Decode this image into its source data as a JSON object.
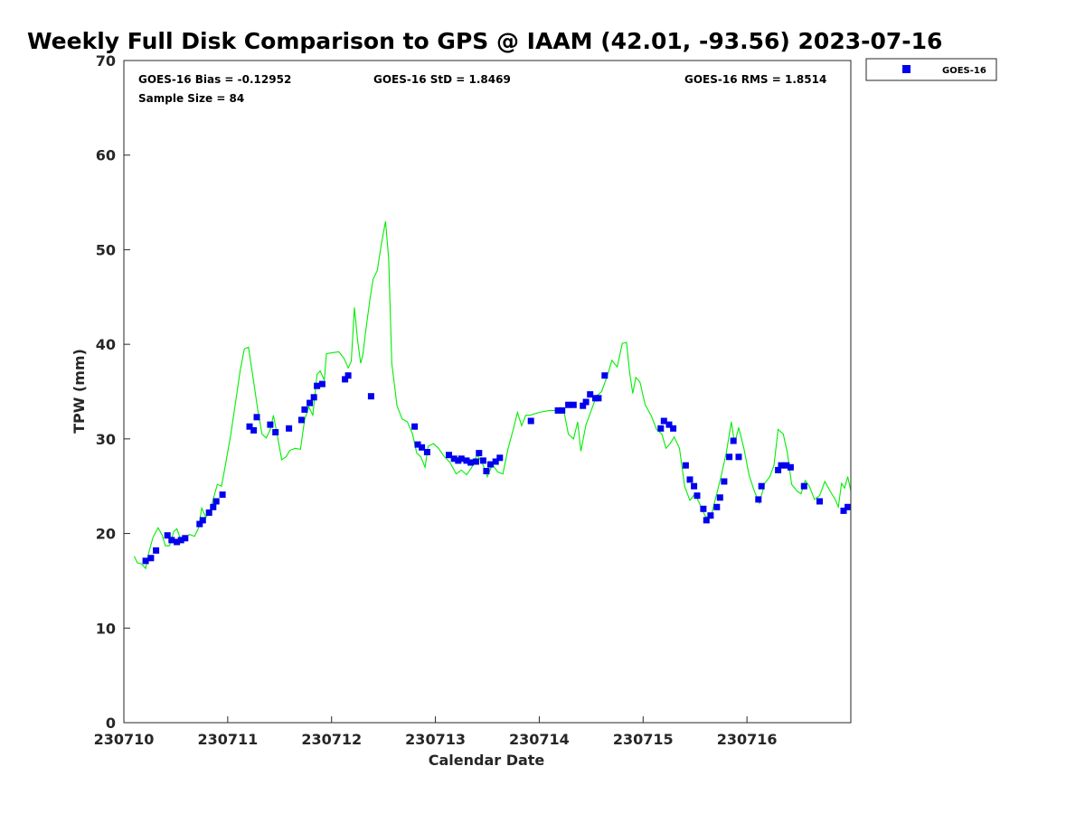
{
  "chart_data": {
    "type": "scatter",
    "title": "Weekly Full Disk Comparison to GPS @ IAAM (42.01, -93.56) 2023-07-16",
    "xlabel": "Calendar Date",
    "ylabel": "TPW (mm)",
    "xlim": [
      230710,
      230717
    ],
    "ylim": [
      0,
      70
    ],
    "x_ticks": [
      "230710",
      "230711",
      "230712",
      "230713",
      "230714",
      "230715",
      "230716"
    ],
    "y_ticks": [
      "0",
      "10",
      "20",
      "30",
      "40",
      "50",
      "60",
      "70"
    ],
    "legend_position": "top-right-outside",
    "stats": {
      "bias": "GOES-16 Bias = -0.12952",
      "std": "GOES-16 StD = 1.8469",
      "rms": "GOES-16 RMS = 1.8514",
      "sample": "Sample Size = 84"
    },
    "colors": {
      "goes": "#0000ee",
      "gps": "#00ee00"
    },
    "series": [
      {
        "name": "GOES-16",
        "kind": "scatter",
        "points": [
          [
            230710.21,
            17.1
          ],
          [
            230710.26,
            17.4
          ],
          [
            230710.31,
            18.2
          ],
          [
            230710.42,
            19.8
          ],
          [
            230710.46,
            19.3
          ],
          [
            230710.51,
            19.1
          ],
          [
            230710.55,
            19.3
          ],
          [
            230710.59,
            19.5
          ],
          [
            230710.73,
            21.0
          ],
          [
            230710.76,
            21.4
          ],
          [
            230710.82,
            22.2
          ],
          [
            230710.86,
            22.8
          ],
          [
            230710.89,
            23.4
          ],
          [
            230710.95,
            24.1
          ],
          [
            230711.21,
            31.3
          ],
          [
            230711.25,
            30.9
          ],
          [
            230711.28,
            32.3
          ],
          [
            230711.41,
            31.5
          ],
          [
            230711.46,
            30.7
          ],
          [
            230711.59,
            31.1
          ],
          [
            230711.71,
            32.0
          ],
          [
            230711.74,
            33.1
          ],
          [
            230711.79,
            33.8
          ],
          [
            230711.83,
            34.4
          ],
          [
            230711.86,
            35.6
          ],
          [
            230711.91,
            35.8
          ],
          [
            230712.13,
            36.3
          ],
          [
            230712.16,
            36.7
          ],
          [
            230712.38,
            34.5
          ],
          [
            230712.8,
            31.3
          ],
          [
            230712.83,
            29.4
          ],
          [
            230712.87,
            29.1
          ],
          [
            230712.92,
            28.6
          ],
          [
            230713.13,
            28.3
          ],
          [
            230713.18,
            27.9
          ],
          [
            230713.22,
            27.7
          ],
          [
            230713.25,
            27.9
          ],
          [
            230713.3,
            27.7
          ],
          [
            230713.34,
            27.5
          ],
          [
            230713.39,
            27.6
          ],
          [
            230713.42,
            28.5
          ],
          [
            230713.46,
            27.7
          ],
          [
            230713.49,
            26.6
          ],
          [
            230713.53,
            27.3
          ],
          [
            230713.58,
            27.6
          ],
          [
            230713.62,
            28.0
          ],
          [
            230713.92,
            31.9
          ],
          [
            230714.18,
            33.0
          ],
          [
            230714.22,
            33.0
          ],
          [
            230714.28,
            33.6
          ],
          [
            230714.33,
            33.6
          ],
          [
            230714.42,
            33.5
          ],
          [
            230714.45,
            33.9
          ],
          [
            230714.49,
            34.7
          ],
          [
            230714.54,
            34.3
          ],
          [
            230714.57,
            34.3
          ],
          [
            230714.63,
            36.7
          ],
          [
            230715.17,
            31.1
          ],
          [
            230715.2,
            31.9
          ],
          [
            230715.25,
            31.5
          ],
          [
            230715.29,
            31.1
          ],
          [
            230715.41,
            27.2
          ],
          [
            230715.45,
            25.7
          ],
          [
            230715.49,
            25.0
          ],
          [
            230715.52,
            24.0
          ],
          [
            230715.58,
            22.6
          ],
          [
            230715.61,
            21.4
          ],
          [
            230715.65,
            21.9
          ],
          [
            230715.71,
            22.8
          ],
          [
            230715.74,
            23.8
          ],
          [
            230715.78,
            25.5
          ],
          [
            230715.83,
            28.1
          ],
          [
            230715.87,
            29.8
          ],
          [
            230715.92,
            28.1
          ],
          [
            230716.11,
            23.6
          ],
          [
            230716.14,
            25.0
          ],
          [
            230716.3,
            26.7
          ],
          [
            230716.33,
            27.2
          ],
          [
            230716.38,
            27.2
          ],
          [
            230716.42,
            27.0
          ],
          [
            230716.55,
            25.0
          ],
          [
            230716.7,
            23.4
          ],
          [
            230716.93,
            22.4
          ],
          [
            230716.97,
            22.8
          ]
        ]
      },
      {
        "name": "GPS",
        "kind": "line",
        "points": [
          [
            230710.1,
            17.6
          ],
          [
            230710.13,
            16.9
          ],
          [
            230710.17,
            16.8
          ],
          [
            230710.21,
            16.3
          ],
          [
            230710.24,
            18.0
          ],
          [
            230710.28,
            19.6
          ],
          [
            230710.33,
            20.6
          ],
          [
            230710.37,
            19.8
          ],
          [
            230710.4,
            18.7
          ],
          [
            230710.44,
            18.7
          ],
          [
            230710.48,
            20.2
          ],
          [
            230710.51,
            20.5
          ],
          [
            230710.54,
            19.6
          ],
          [
            230710.59,
            19.5
          ],
          [
            230710.63,
            19.9
          ],
          [
            230710.68,
            19.7
          ],
          [
            230710.72,
            20.6
          ],
          [
            230710.75,
            22.7
          ],
          [
            230710.79,
            21.7
          ],
          [
            230710.83,
            22.3
          ],
          [
            230710.87,
            24.0
          ],
          [
            230710.9,
            25.2
          ],
          [
            230710.94,
            25.0
          ],
          [
            230710.98,
            27.4
          ],
          [
            230711.03,
            30.5
          ],
          [
            230711.08,
            34.2
          ],
          [
            230711.12,
            37.2
          ],
          [
            230711.16,
            39.5
          ],
          [
            230711.2,
            39.7
          ],
          [
            230711.25,
            36.0
          ],
          [
            230711.29,
            33.0
          ],
          [
            230711.33,
            30.5
          ],
          [
            230711.37,
            30.1
          ],
          [
            230711.41,
            31.0
          ],
          [
            230711.44,
            32.5
          ],
          [
            230711.48,
            30.2
          ],
          [
            230711.52,
            27.8
          ],
          [
            230711.56,
            28.1
          ],
          [
            230711.6,
            28.8
          ],
          [
            230711.65,
            29.0
          ],
          [
            230711.7,
            28.9
          ],
          [
            230711.74,
            32.0
          ],
          [
            230711.78,
            33.4
          ],
          [
            230711.82,
            32.5
          ],
          [
            230711.86,
            36.8
          ],
          [
            230711.89,
            37.2
          ],
          [
            230711.93,
            36.2
          ],
          [
            230711.95,
            39.0
          ],
          [
            230712.0,
            39.1
          ],
          [
            230712.07,
            39.2
          ],
          [
            230712.12,
            38.5
          ],
          [
            230712.16,
            37.5
          ],
          [
            230712.19,
            38.2
          ],
          [
            230712.22,
            43.9
          ],
          [
            230712.25,
            40.5
          ],
          [
            230712.28,
            38.0
          ],
          [
            230712.3,
            38.8
          ],
          [
            230712.33,
            41.5
          ],
          [
            230712.37,
            44.8
          ],
          [
            230712.4,
            46.9
          ],
          [
            230712.44,
            47.8
          ],
          [
            230712.48,
            50.6
          ],
          [
            230712.52,
            53.0
          ],
          [
            230712.55,
            49.0
          ],
          [
            230712.58,
            38.0
          ],
          [
            230712.63,
            33.5
          ],
          [
            230712.68,
            32.1
          ],
          [
            230712.73,
            31.8
          ],
          [
            230712.78,
            30.5
          ],
          [
            230712.82,
            28.5
          ],
          [
            230712.86,
            28.1
          ],
          [
            230712.9,
            27.0
          ],
          [
            230712.93,
            29.2
          ],
          [
            230712.98,
            29.5
          ],
          [
            230713.03,
            29.0
          ],
          [
            230713.08,
            28.2
          ],
          [
            230713.14,
            27.5
          ],
          [
            230713.2,
            26.3
          ],
          [
            230713.25,
            26.7
          ],
          [
            230713.3,
            26.2
          ],
          [
            230713.35,
            27.0
          ],
          [
            230713.4,
            28.3
          ],
          [
            230713.45,
            27.5
          ],
          [
            230713.5,
            26.0
          ],
          [
            230713.55,
            27.3
          ],
          [
            230713.6,
            26.5
          ],
          [
            230713.65,
            26.3
          ],
          [
            230713.7,
            29.0
          ],
          [
            230713.75,
            31.0
          ],
          [
            230713.79,
            32.8
          ],
          [
            230713.83,
            31.4
          ],
          [
            230713.87,
            32.5
          ],
          [
            230713.91,
            32.5
          ],
          [
            230714.0,
            32.8
          ],
          [
            230714.1,
            33.0
          ],
          [
            230714.2,
            33.0
          ],
          [
            230714.24,
            32.8
          ],
          [
            230714.28,
            30.5
          ],
          [
            230714.33,
            30.0
          ],
          [
            230714.37,
            31.8
          ],
          [
            230714.4,
            28.7
          ],
          [
            230714.45,
            31.5
          ],
          [
            230714.5,
            33.0
          ],
          [
            230714.55,
            34.5
          ],
          [
            230714.6,
            35.0
          ],
          [
            230714.65,
            36.5
          ],
          [
            230714.7,
            38.3
          ],
          [
            230714.75,
            37.6
          ],
          [
            230714.8,
            40.1
          ],
          [
            230714.84,
            40.2
          ],
          [
            230714.87,
            37.0
          ],
          [
            230714.9,
            34.8
          ],
          [
            230714.93,
            36.5
          ],
          [
            230714.97,
            36.0
          ],
          [
            230715.02,
            33.6
          ],
          [
            230715.08,
            32.4
          ],
          [
            230715.13,
            31.0
          ],
          [
            230715.18,
            30.5
          ],
          [
            230715.22,
            29.0
          ],
          [
            230715.26,
            29.5
          ],
          [
            230715.3,
            30.2
          ],
          [
            230715.35,
            29.0
          ],
          [
            230715.4,
            25.0
          ],
          [
            230715.45,
            23.5
          ],
          [
            230715.5,
            24.2
          ],
          [
            230715.55,
            23.0
          ],
          [
            230715.6,
            21.8
          ],
          [
            230715.65,
            21.6
          ],
          [
            230715.7,
            23.8
          ],
          [
            230715.75,
            26.0
          ],
          [
            230715.8,
            28.5
          ],
          [
            230715.85,
            31.8
          ],
          [
            230715.88,
            29.5
          ],
          [
            230715.92,
            31.2
          ],
          [
            230715.97,
            29.0
          ],
          [
            230716.02,
            26.2
          ],
          [
            230716.07,
            24.5
          ],
          [
            230716.12,
            23.2
          ],
          [
            230716.17,
            25.3
          ],
          [
            230716.22,
            26.0
          ],
          [
            230716.26,
            27.2
          ],
          [
            230716.3,
            31.0
          ],
          [
            230716.35,
            30.5
          ],
          [
            230716.39,
            28.5
          ],
          [
            230716.43,
            25.2
          ],
          [
            230716.48,
            24.5
          ],
          [
            230716.52,
            24.2
          ],
          [
            230716.56,
            25.6
          ],
          [
            230716.6,
            25.0
          ],
          [
            230716.65,
            23.6
          ],
          [
            230716.7,
            24.0
          ],
          [
            230716.75,
            25.5
          ],
          [
            230716.8,
            24.5
          ],
          [
            230716.85,
            23.6
          ],
          [
            230716.88,
            22.8
          ],
          [
            230716.91,
            25.3
          ],
          [
            230716.94,
            24.8
          ],
          [
            230716.97,
            26.0
          ],
          [
            230717.0,
            24.5
          ]
        ]
      }
    ]
  }
}
